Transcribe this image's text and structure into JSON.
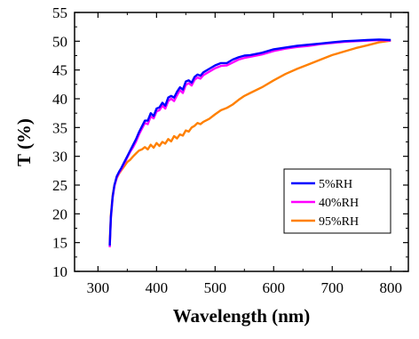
{
  "chart_data": {
    "type": "line",
    "xlabel": "Wavelength (nm)",
    "ylabel": "T (%)",
    "xlim": [
      260,
      830
    ],
    "ylim": [
      10,
      55
    ],
    "xticks": [
      300,
      400,
      500,
      600,
      700,
      800
    ],
    "yticks": [
      10,
      15,
      20,
      25,
      30,
      35,
      40,
      45,
      50,
      55
    ],
    "grid": false,
    "legend_position": "center-right",
    "series": [
      {
        "name": "5%RH",
        "color": "#0000ff",
        "x": [
          320,
          322,
          325,
          328,
          332,
          336,
          340,
          345,
          350,
          355,
          360,
          365,
          370,
          375,
          380,
          385,
          390,
          395,
          400,
          405,
          410,
          415,
          420,
          425,
          430,
          435,
          440,
          445,
          450,
          455,
          460,
          465,
          470,
          475,
          480,
          490,
          500,
          510,
          520,
          530,
          540,
          550,
          560,
          580,
          600,
          620,
          640,
          660,
          680,
          700,
          720,
          740,
          760,
          780,
          800
        ],
        "y": [
          14.5,
          19.5,
          23,
          25,
          26.5,
          27.3,
          28,
          29,
          30,
          31,
          32,
          33,
          34.2,
          35.2,
          36.2,
          36.2,
          37.5,
          37,
          38.3,
          38.5,
          39.3,
          38.8,
          40.2,
          40.5,
          40.2,
          41.2,
          42,
          41.6,
          43,
          43.2,
          42.8,
          43.8,
          44.2,
          44,
          44.6,
          45.2,
          45.8,
          46.2,
          46.2,
          46.8,
          47.2,
          47.5,
          47.6,
          48,
          48.6,
          48.9,
          49.2,
          49.4,
          49.6,
          49.8,
          50,
          50.1,
          50.2,
          50.3,
          50.2
        ]
      },
      {
        "name": "40%RH",
        "color": "#ff00ff",
        "x": [
          320,
          322,
          325,
          328,
          332,
          336,
          340,
          345,
          350,
          355,
          360,
          365,
          370,
          375,
          380,
          385,
          390,
          395,
          400,
          405,
          410,
          415,
          420,
          425,
          430,
          435,
          440,
          445,
          450,
          455,
          460,
          465,
          470,
          475,
          480,
          490,
          500,
          510,
          520,
          530,
          540,
          550,
          560,
          580,
          600,
          620,
          640,
          660,
          680,
          700,
          720,
          740,
          760,
          780,
          800
        ],
        "y": [
          14.2,
          19.2,
          22.8,
          24.8,
          26.3,
          27.1,
          27.8,
          28.8,
          29.8,
          30.8,
          31.6,
          32.6,
          33.8,
          34.8,
          35.8,
          35.6,
          36.9,
          36.6,
          37.8,
          38,
          38.8,
          38.3,
          39.6,
          40,
          39.6,
          40.6,
          41.5,
          41,
          42.4,
          42.7,
          42.3,
          43.3,
          43.7,
          43.5,
          44.1,
          44.7,
          45.3,
          45.7,
          45.8,
          46.3,
          46.8,
          47.1,
          47.3,
          47.7,
          48.3,
          48.7,
          49,
          49.2,
          49.5,
          49.7,
          49.9,
          50,
          50.1,
          50.2,
          50.1
        ]
      },
      {
        "name": "95%RH",
        "color": "#ff8000",
        "x": [
          320,
          322,
          325,
          328,
          332,
          336,
          340,
          345,
          350,
          355,
          360,
          365,
          370,
          375,
          380,
          385,
          390,
          395,
          400,
          405,
          410,
          415,
          420,
          425,
          430,
          435,
          440,
          445,
          450,
          455,
          460,
          465,
          470,
          475,
          480,
          490,
          500,
          510,
          520,
          530,
          540,
          550,
          560,
          580,
          600,
          620,
          640,
          660,
          680,
          700,
          720,
          740,
          760,
          780,
          800
        ],
        "y": [
          14.8,
          19.8,
          23.2,
          25,
          26.2,
          27,
          27.6,
          28.3,
          29,
          29.4,
          30,
          30.5,
          31,
          31.2,
          31.6,
          31.2,
          32,
          31.5,
          32.3,
          31.8,
          32.5,
          32.2,
          33,
          32.6,
          33.5,
          33.1,
          33.8,
          33.6,
          34.5,
          34.3,
          35,
          35.3,
          35.8,
          35.6,
          36,
          36.5,
          37.3,
          38,
          38.4,
          39,
          39.8,
          40.5,
          41,
          42,
          43.2,
          44.3,
          45.2,
          46,
          46.8,
          47.6,
          48.2,
          48.8,
          49.3,
          49.8,
          50.1
        ]
      }
    ]
  }
}
